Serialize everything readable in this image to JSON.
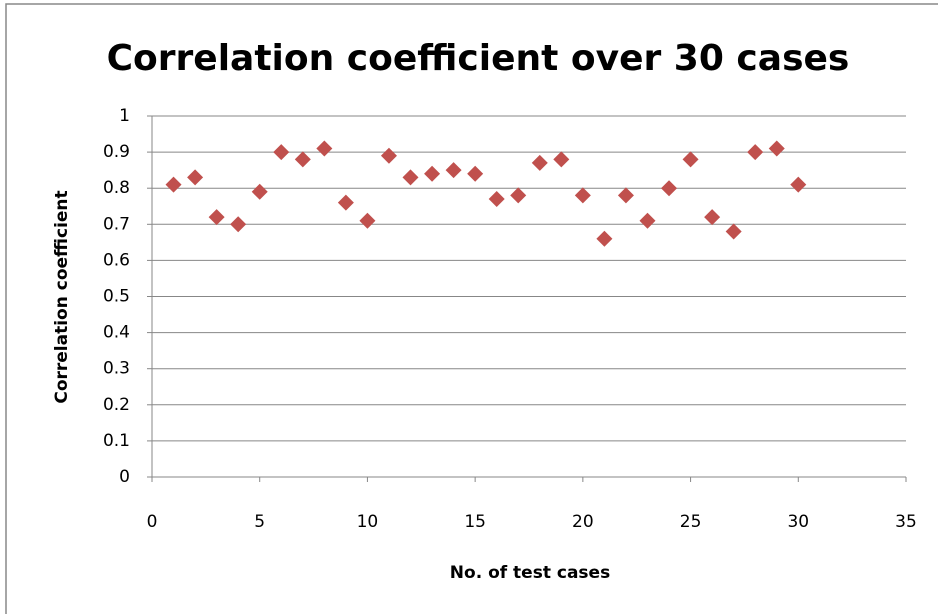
{
  "chart_data": {
    "type": "scatter",
    "title": "Correlation coefficient over 30 cases",
    "x_label": "No. of test cases",
    "y_label": "Correlation coefficient",
    "x": [
      1,
      2,
      3,
      4,
      5,
      6,
      7,
      8,
      9,
      10,
      11,
      12,
      13,
      14,
      15,
      16,
      17,
      18,
      19,
      20,
      21,
      22,
      23,
      24,
      25,
      26,
      27,
      28,
      29,
      30
    ],
    "values": [
      0.81,
      0.83,
      0.72,
      0.7,
      0.79,
      0.9,
      0.88,
      0.91,
      0.76,
      0.71,
      0.89,
      0.83,
      0.84,
      0.85,
      0.84,
      0.77,
      0.78,
      0.87,
      0.88,
      0.78,
      0.66,
      0.78,
      0.71,
      0.8,
      0.88,
      0.72,
      0.68,
      0.9,
      0.91,
      0.81
    ],
    "color": "#c0504d",
    "xlim": [
      0,
      35
    ],
    "xticks": [
      0,
      5,
      10,
      15,
      20,
      25,
      30,
      35
    ],
    "ylim": [
      0,
      1
    ],
    "yticks": [
      0,
      0.1,
      0.2,
      0.3,
      0.4,
      0.5,
      0.6,
      0.7,
      0.8,
      0.9,
      1
    ],
    "grid": true
  }
}
